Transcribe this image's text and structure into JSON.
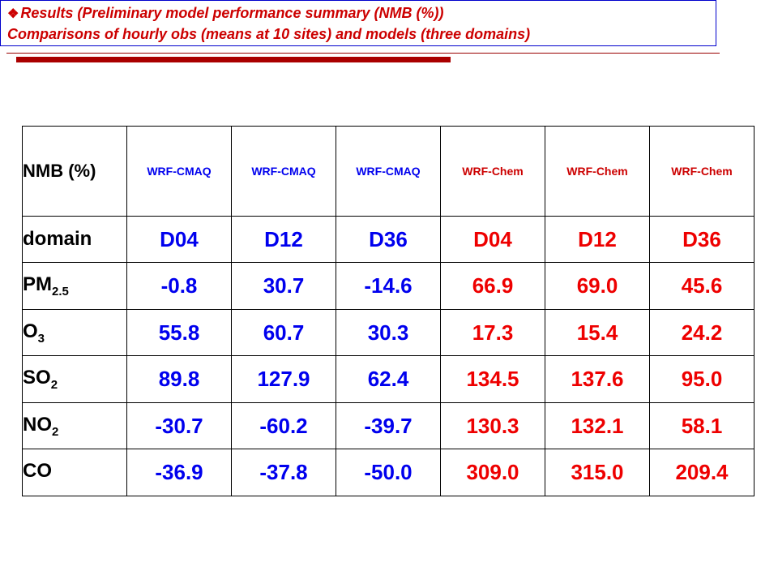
{
  "header": {
    "line1": "Results (Preliminary model performance summary (NMB (%))",
    "line2": "Comparisons of hourly obs (means at 10 sites) and models (three domains)",
    "bullet": "❖"
  },
  "table": {
    "corner_label": "NMB (%)",
    "models": [
      "WRF-CMAQ",
      "WRF-CMAQ",
      "WRF-CMAQ",
      "WRF-Chem",
      "WRF-Chem",
      "WRF-Chem"
    ],
    "domain_label": "domain",
    "domains": [
      "D04",
      "D12",
      "D36",
      "D04",
      "D12",
      "D36"
    ],
    "rows": [
      {
        "species": "PM",
        "sub": "2.5",
        "values": [
          "-0.8",
          "30.7",
          "-14.6",
          "66.9",
          "69.0",
          "45.6"
        ]
      },
      {
        "species": "O",
        "sub": "3",
        "values": [
          "55.8",
          "60.7",
          "30.3",
          "17.3",
          "15.4",
          "24.2"
        ]
      },
      {
        "species": "SO",
        "sub": "2",
        "values": [
          "89.8",
          "127.9",
          "62.4",
          "134.5",
          "137.6",
          "95.0"
        ]
      },
      {
        "species": "NO",
        "sub": "2",
        "values": [
          "-30.7",
          "-60.2",
          "-39.7",
          "130.3",
          "132.1",
          "58.1"
        ]
      },
      {
        "species": "CO",
        "sub": "",
        "values": [
          "-36.9",
          "-37.8",
          "-50.0",
          "309.0",
          "315.0",
          "209.4"
        ]
      }
    ]
  },
  "colors": {
    "cmaq": "#0000ee",
    "chem": "#ee0000",
    "header_text": "#cc0000",
    "header_border": "#0000cc"
  }
}
